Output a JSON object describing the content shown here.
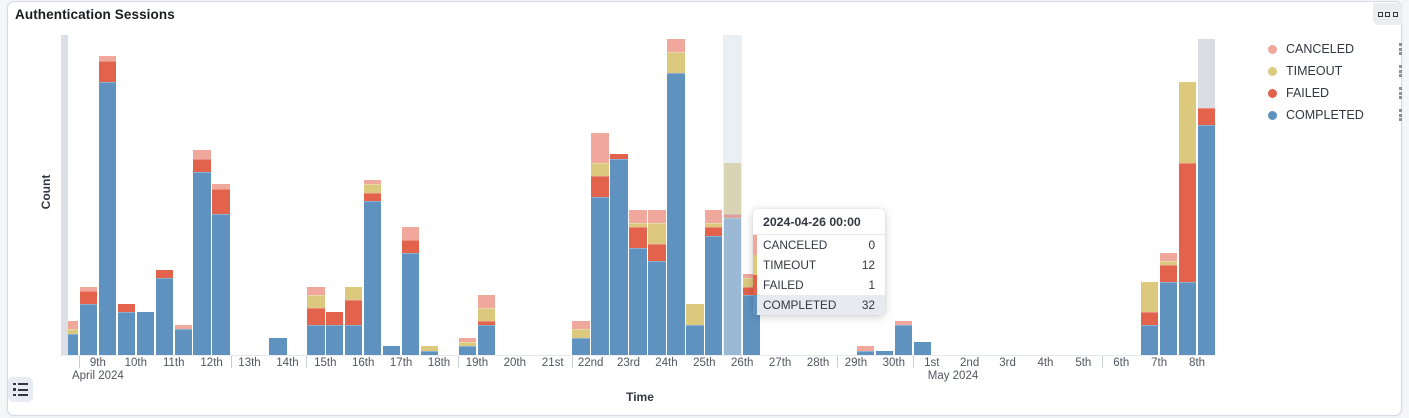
{
  "panel": {
    "title": "Authentication Sessions",
    "options_icon": "boxes-horizontal-icon"
  },
  "legend": {
    "items": [
      {
        "label": "CANCELED",
        "color": "#F0A89D"
      },
      {
        "label": "TIMEOUT",
        "color": "#DCC97E"
      },
      {
        "label": "FAILED",
        "color": "#E2624B"
      },
      {
        "label": "COMPLETED",
        "color": "#6092C0"
      }
    ],
    "item_action_icon": "boxes-vertical-icon",
    "toggle_icon": "list-icon"
  },
  "tooltip": {
    "title": "2024-04-26 00:00",
    "rows": [
      {
        "label": "CANCELED",
        "value": "0",
        "color": "#F0A89D",
        "highlighted": false
      },
      {
        "label": "TIMEOUT",
        "value": "12",
        "color": "#DCC97E",
        "highlighted": false
      },
      {
        "label": "FAILED",
        "value": "1",
        "color": "#E2624B",
        "highlighted": false
      },
      {
        "label": "COMPLETED",
        "value": "32",
        "color": "#6092C0",
        "highlighted": true
      }
    ]
  },
  "chart_data": {
    "type": "bar",
    "stacked": true,
    "title": "Authentication Sessions",
    "xlabel": "Time",
    "ylabel": "Count",
    "ylim": [
      0,
      75
    ],
    "grid": false,
    "legend_position": "right",
    "interval": "12h",
    "x_start": "2024-04-08 12:00",
    "x_end": "2024-05-09 00:00",
    "value_order": [
      "CANCELED",
      "TIMEOUT",
      "FAILED",
      "COMPLETED"
    ],
    "hovered_bucket_index": 35,
    "left_partial_marker": {
      "present": true,
      "color": "#DCDFE3"
    },
    "buckets": [
      {
        "t": "2024-04-08 12:00",
        "v": [
          2,
          1,
          0,
          5
        ]
      },
      {
        "t": "2024-04-09 00:00",
        "v": [
          1,
          0,
          3,
          12
        ]
      },
      {
        "t": "2024-04-09 12:00",
        "v": [
          1,
          0,
          5,
          64
        ]
      },
      {
        "t": "2024-04-10 00:00",
        "v": [
          0,
          0,
          2,
          10
        ]
      },
      {
        "t": "2024-04-10 12:00",
        "v": [
          0,
          0,
          0,
          10
        ]
      },
      {
        "t": "2024-04-11 00:00",
        "v": [
          0,
          0,
          2,
          18
        ]
      },
      {
        "t": "2024-04-11 12:00",
        "v": [
          1,
          0,
          0,
          6
        ]
      },
      {
        "t": "2024-04-12 00:00",
        "v": [
          2,
          0,
          3,
          43
        ]
      },
      {
        "t": "2024-04-12 12:00",
        "v": [
          1,
          0,
          6,
          33
        ]
      },
      {
        "t": "2024-04-13 00:00",
        "v": [
          0,
          0,
          0,
          0
        ]
      },
      {
        "t": "2024-04-13 12:00",
        "v": [
          0,
          0,
          0,
          0
        ]
      },
      {
        "t": "2024-04-14 00:00",
        "v": [
          0,
          0,
          0,
          4
        ]
      },
      {
        "t": "2024-04-14 12:00",
        "v": [
          0,
          0,
          0,
          0
        ]
      },
      {
        "t": "2024-04-15 00:00",
        "v": [
          2,
          3,
          4,
          7
        ]
      },
      {
        "t": "2024-04-15 12:00",
        "v": [
          0,
          0,
          3,
          7
        ]
      },
      {
        "t": "2024-04-16 00:00",
        "v": [
          0,
          3,
          6,
          7
        ]
      },
      {
        "t": "2024-04-16 12:00",
        "v": [
          1,
          2,
          2,
          36
        ]
      },
      {
        "t": "2024-04-17 00:00",
        "v": [
          0,
          0,
          0,
          2
        ]
      },
      {
        "t": "2024-04-17 12:00",
        "v": [
          3,
          0,
          3,
          24
        ]
      },
      {
        "t": "2024-04-18 00:00",
        "v": [
          0,
          1,
          0,
          1
        ]
      },
      {
        "t": "2024-04-18 12:00",
        "v": [
          0,
          0,
          0,
          0
        ]
      },
      {
        "t": "2024-04-19 00:00",
        "v": [
          1,
          1,
          0,
          2
        ]
      },
      {
        "t": "2024-04-19 12:00",
        "v": [
          3,
          3,
          1,
          7
        ]
      },
      {
        "t": "2024-04-20 00:00",
        "v": [
          0,
          0,
          0,
          0
        ]
      },
      {
        "t": "2024-04-20 12:00",
        "v": [
          0,
          0,
          0,
          0
        ]
      },
      {
        "t": "2024-04-21 00:00",
        "v": [
          0,
          0,
          0,
          0
        ]
      },
      {
        "t": "2024-04-21 12:00",
        "v": [
          0,
          0,
          0,
          0
        ]
      },
      {
        "t": "2024-04-22 00:00",
        "v": [
          2,
          2,
          0,
          4
        ]
      },
      {
        "t": "2024-04-22 12:00",
        "v": [
          7,
          3,
          5,
          37
        ]
      },
      {
        "t": "2024-04-23 00:00",
        "v": [
          0,
          0,
          1,
          46
        ]
      },
      {
        "t": "2024-04-23 12:00",
        "v": [
          3,
          1,
          5,
          25
        ]
      },
      {
        "t": "2024-04-24 00:00",
        "v": [
          3,
          5,
          4,
          22
        ]
      },
      {
        "t": "2024-04-24 12:00",
        "v": [
          3,
          5,
          0,
          66
        ]
      },
      {
        "t": "2024-04-25 00:00",
        "v": [
          0,
          5,
          0,
          7
        ]
      },
      {
        "t": "2024-04-25 12:00",
        "v": [
          3,
          1,
          2,
          28
        ]
      },
      {
        "t": "2024-04-26 00:00",
        "v": [
          0,
          12,
          1,
          32
        ]
      },
      {
        "t": "2024-04-26 12:00",
        "v": [
          1,
          2,
          2,
          14
        ]
      },
      {
        "t": "2024-04-27 00:00",
        "v": [
          0,
          0,
          0,
          0
        ]
      },
      {
        "t": "2024-04-27 12:00",
        "v": [
          0,
          0,
          0,
          0
        ]
      },
      {
        "t": "2024-04-28 00:00",
        "v": [
          0,
          0,
          0,
          0
        ]
      },
      {
        "t": "2024-04-28 12:00",
        "v": [
          0,
          0,
          0,
          0
        ]
      },
      {
        "t": "2024-04-29 00:00",
        "v": [
          0,
          0,
          0,
          0
        ]
      },
      {
        "t": "2024-04-29 12:00",
        "v": [
          1,
          0,
          0,
          1
        ]
      },
      {
        "t": "2024-04-30 00:00",
        "v": [
          0,
          0,
          0,
          1
        ]
      },
      {
        "t": "2024-04-30 12:00",
        "v": [
          1,
          0,
          0,
          7
        ]
      },
      {
        "t": "2024-05-01 00:00",
        "v": [
          0,
          0,
          0,
          3
        ]
      },
      {
        "t": "2024-05-01 12:00",
        "v": [
          0,
          0,
          0,
          0
        ]
      },
      {
        "t": "2024-05-02 00:00",
        "v": [
          0,
          0,
          0,
          0
        ]
      },
      {
        "t": "2024-05-02 12:00",
        "v": [
          0,
          0,
          0,
          0
        ]
      },
      {
        "t": "2024-05-03 00:00",
        "v": [
          0,
          0,
          0,
          0
        ]
      },
      {
        "t": "2024-05-03 12:00",
        "v": [
          0,
          0,
          0,
          0
        ]
      },
      {
        "t": "2024-05-04 00:00",
        "v": [
          0,
          0,
          0,
          0
        ]
      },
      {
        "t": "2024-05-04 12:00",
        "v": [
          0,
          0,
          0,
          0
        ]
      },
      {
        "t": "2024-05-05 00:00",
        "v": [
          0,
          0,
          0,
          0
        ]
      },
      {
        "t": "2024-05-05 12:00",
        "v": [
          0,
          0,
          0,
          0
        ]
      },
      {
        "t": "2024-05-06 00:00",
        "v": [
          0,
          0,
          0,
          0
        ]
      },
      {
        "t": "2024-05-06 12:00",
        "v": [
          0,
          0,
          0,
          0
        ]
      },
      {
        "t": "2024-05-07 00:00",
        "v": [
          0,
          7,
          3,
          7
        ]
      },
      {
        "t": "2024-05-07 12:00",
        "v": [
          2,
          1,
          4,
          17
        ]
      },
      {
        "t": "2024-05-08 00:00",
        "v": [
          0,
          19,
          28,
          17
        ]
      },
      {
        "t": "2024-05-08 12:00",
        "v": [
          0,
          0,
          4,
          54
        ],
        "gray_top": 16
      }
    ],
    "day_labels": [
      "9th",
      "10th",
      "11th",
      "12th",
      "13th",
      "14th",
      "15th",
      "16th",
      "17th",
      "18th",
      "19th",
      "20th",
      "21st",
      "22nd",
      "23rd",
      "24th",
      "25th",
      "26th",
      "27th",
      "28th",
      "29th",
      "30th",
      "1st",
      "2nd",
      "3rd",
      "4th",
      "5th",
      "6th",
      "7th",
      "8th"
    ],
    "tick_day_indices": [
      0,
      4,
      6,
      10,
      13,
      20,
      22,
      27
    ],
    "month_labels": [
      {
        "text": "April 2024",
        "day_index": 0,
        "align": "center"
      },
      {
        "text": "May 2024",
        "day_index": 22,
        "align": "left"
      }
    ]
  }
}
